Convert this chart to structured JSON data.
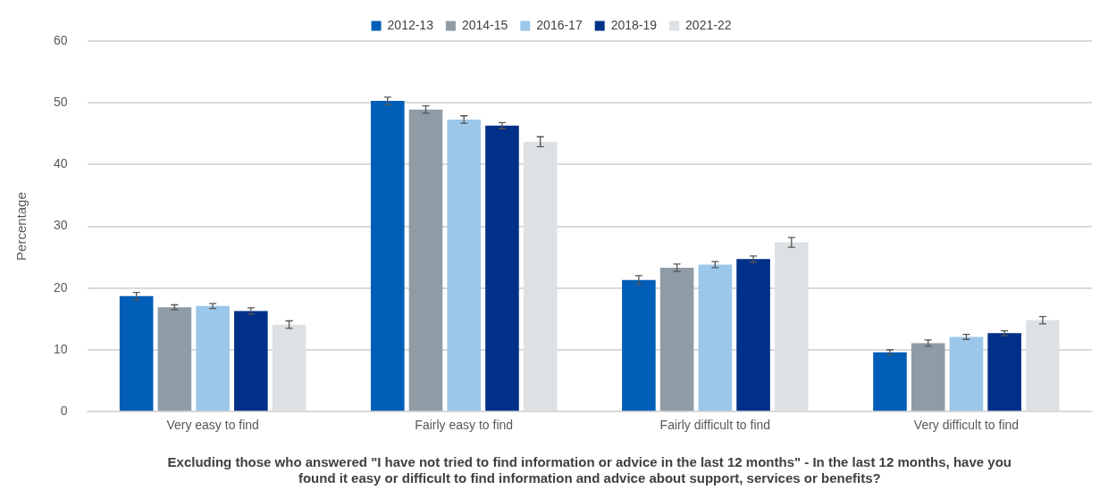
{
  "chart_data": {
    "type": "bar",
    "xlabel": "Excluding those who answered \"I have not tried to find information or advice in the last 12 months\" - In the last 12 months, have you found it easy or difficult to find information and advice about support, services or benefits?",
    "ylabel": "Percentage",
    "categories": [
      "Very easy to find",
      "Fairly easy to find",
      "Fairly difficult to find",
      "Very difficult to find"
    ],
    "series": [
      {
        "name": "2012-13",
        "color": "#005eb8",
        "values": [
          18.7,
          50.3,
          21.3,
          9.6
        ],
        "errors": [
          0.6,
          0.6,
          0.7,
          0.4
        ]
      },
      {
        "name": "2014-15",
        "color": "#8f9ca6",
        "values": [
          16.9,
          48.9,
          23.3,
          11.1
        ],
        "errors": [
          0.4,
          0.6,
          0.6,
          0.5
        ]
      },
      {
        "name": "2016-17",
        "color": "#9bc7ea",
        "values": [
          17.1,
          47.3,
          23.8,
          12.1
        ],
        "errors": [
          0.4,
          0.6,
          0.5,
          0.4
        ]
      },
      {
        "name": "2018-19",
        "color": "#003087",
        "values": [
          16.3,
          46.3,
          24.7,
          12.7
        ],
        "errors": [
          0.5,
          0.5,
          0.5,
          0.4
        ]
      },
      {
        "name": "2021-22",
        "color": "#dde1e4",
        "values": [
          14.1,
          43.7,
          27.4,
          14.8
        ],
        "errors": [
          0.6,
          0.8,
          0.8,
          0.6
        ]
      }
    ],
    "ylim": [
      0,
      60
    ],
    "yticks": [
      0,
      10,
      20,
      30,
      40,
      50,
      60
    ],
    "grid": "y",
    "legend": "top"
  }
}
